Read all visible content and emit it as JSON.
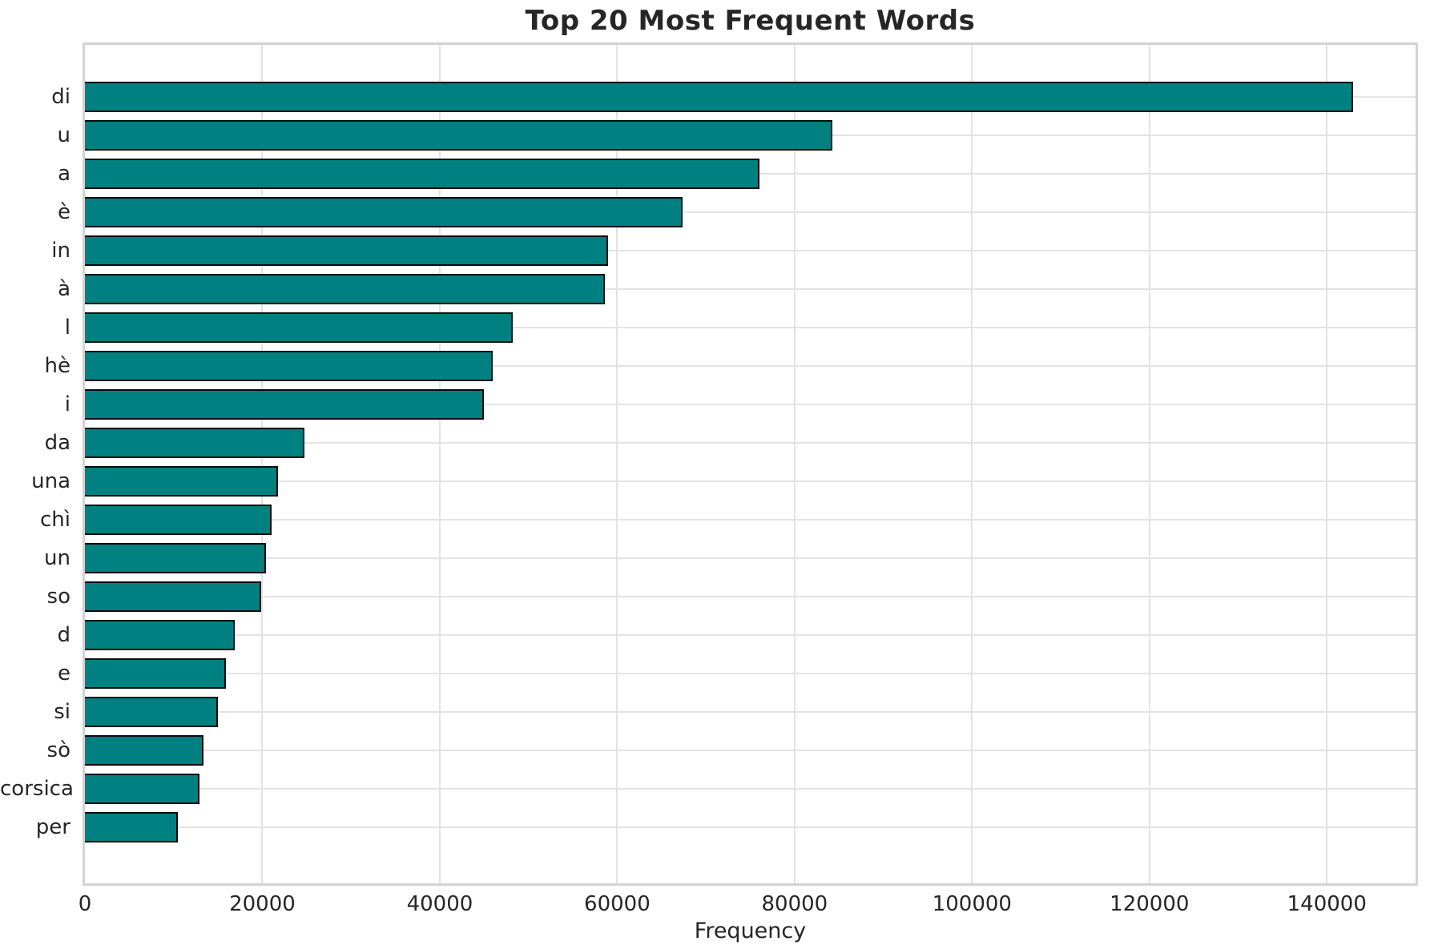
{
  "chart_data": {
    "type": "bar",
    "orientation": "horizontal",
    "title": "Top 20 Most Frequent Words",
    "xlabel": "Frequency",
    "ylabel": "",
    "categories": [
      "di",
      "u",
      "a",
      "è",
      "in",
      "à",
      "l",
      "hè",
      "i",
      "da",
      "una",
      "chì",
      "un",
      "so",
      "d",
      "e",
      "si",
      "sò",
      "corsica",
      "per"
    ],
    "values": [
      143000,
      84300,
      76000,
      67400,
      59000,
      58600,
      48200,
      46000,
      45000,
      24700,
      21800,
      21000,
      20400,
      19900,
      16900,
      15900,
      15000,
      13400,
      12900,
      10500
    ],
    "xlim": [
      0,
      150000
    ],
    "xticks": [
      0,
      20000,
      40000,
      60000,
      80000,
      100000,
      120000,
      140000
    ],
    "grid": true,
    "legend": false,
    "colors": {
      "bar_fill": "#008080",
      "bar_edge": "#0b0b0b",
      "gridline": "#e3e3e3",
      "spine": "#d3d3d3",
      "text": "#262626"
    }
  }
}
